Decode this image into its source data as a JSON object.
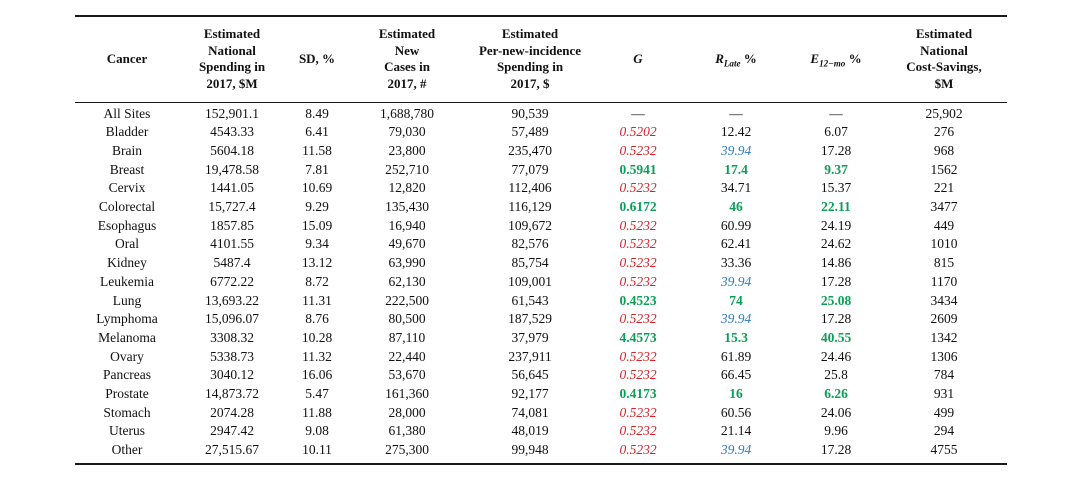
{
  "colors": {
    "flag_red": "#da2128",
    "flag_green": "#0a9f56",
    "flag_blue": "#2c7cc3",
    "rule": "#1a1a1a"
  },
  "table": {
    "headers": {
      "cancer": "Cancer",
      "spending": [
        "Estimated",
        "National",
        "Spending in",
        "2017, $M"
      ],
      "sd": "SD, %",
      "cases": [
        "Estimated",
        "New",
        "Cases in",
        "2017, #"
      ],
      "per_incidence": [
        "Estimated",
        "Per-new-incidence",
        "Spending in",
        "2017, $"
      ],
      "g": "G",
      "r_main": "R",
      "r_sub": "Late",
      "r_pct": "%",
      "e_main": "E",
      "e_sub": "12−mo",
      "e_pct": "%",
      "savings": [
        "Estimated",
        "National",
        "Cost-Savings,",
        "$M"
      ]
    },
    "rows": [
      {
        "cancer": "All Sites",
        "spending": "152,901.1",
        "sd": "8.49",
        "cases": "1,688,780",
        "per_incidence": "90,539",
        "g": "—",
        "g_style": "",
        "r_late": "—",
        "r_style": "",
        "e12": "—",
        "e_style": "",
        "savings": "25,902"
      },
      {
        "cancer": "Bladder",
        "spending": "4543.33",
        "sd": "6.41",
        "cases": "79,030",
        "per_incidence": "57,489",
        "g": "0.5202",
        "g_style": "red",
        "r_late": "12.42",
        "r_style": "",
        "e12": "6.07",
        "e_style": "",
        "savings": "276"
      },
      {
        "cancer": "Brain",
        "spending": "5604.18",
        "sd": "11.58",
        "cases": "23,800",
        "per_incidence": "235,470",
        "g": "0.5232",
        "g_style": "red",
        "r_late": "39.94",
        "r_style": "blue",
        "e12": "17.28",
        "e_style": "",
        "savings": "968"
      },
      {
        "cancer": "Breast",
        "spending": "19,478.58",
        "sd": "7.81",
        "cases": "252,710",
        "per_incidence": "77,079",
        "g": "0.5941",
        "g_style": "green",
        "r_late": "17.4",
        "r_style": "green",
        "e12": "9.37",
        "e_style": "green",
        "savings": "1562"
      },
      {
        "cancer": "Cervix",
        "spending": "1441.05",
        "sd": "10.69",
        "cases": "12,820",
        "per_incidence": "112,406",
        "g": "0.5232",
        "g_style": "red",
        "r_late": "34.71",
        "r_style": "",
        "e12": "15.37",
        "e_style": "",
        "savings": "221"
      },
      {
        "cancer": "Colorectal",
        "spending": "15,727.4",
        "sd": "9.29",
        "cases": "135,430",
        "per_incidence": "116,129",
        "g": "0.6172",
        "g_style": "green",
        "r_late": "46",
        "r_style": "green",
        "e12": "22.11",
        "e_style": "green",
        "savings": "3477"
      },
      {
        "cancer": "Esophagus",
        "spending": "1857.85",
        "sd": "15.09",
        "cases": "16,940",
        "per_incidence": "109,672",
        "g": "0.5232",
        "g_style": "red",
        "r_late": "60.99",
        "r_style": "",
        "e12": "24.19",
        "e_style": "",
        "savings": "449"
      },
      {
        "cancer": "Oral",
        "spending": "4101.55",
        "sd": "9.34",
        "cases": "49,670",
        "per_incidence": "82,576",
        "g": "0.5232",
        "g_style": "red",
        "r_late": "62.41",
        "r_style": "",
        "e12": "24.62",
        "e_style": "",
        "savings": "1010"
      },
      {
        "cancer": "Kidney",
        "spending": "5487.4",
        "sd": "13.12",
        "cases": "63,990",
        "per_incidence": "85,754",
        "g": "0.5232",
        "g_style": "red",
        "r_late": "33.36",
        "r_style": "",
        "e12": "14.86",
        "e_style": "",
        "savings": "815"
      },
      {
        "cancer": "Leukemia",
        "spending": "6772.22",
        "sd": "8.72",
        "cases": "62,130",
        "per_incidence": "109,001",
        "g": "0.5232",
        "g_style": "red",
        "r_late": "39.94",
        "r_style": "blue",
        "e12": "17.28",
        "e_style": "",
        "savings": "1170"
      },
      {
        "cancer": "Lung",
        "spending": "13,693.22",
        "sd": "11.31",
        "cases": "222,500",
        "per_incidence": "61,543",
        "g": "0.4523",
        "g_style": "green",
        "r_late": "74",
        "r_style": "green",
        "e12": "25.08",
        "e_style": "green",
        "savings": "3434"
      },
      {
        "cancer": "Lymphoma",
        "spending": "15,096.07",
        "sd": "8.76",
        "cases": "80,500",
        "per_incidence": "187,529",
        "g": "0.5232",
        "g_style": "red",
        "r_late": "39.94",
        "r_style": "blue",
        "e12": "17.28",
        "e_style": "",
        "savings": "2609"
      },
      {
        "cancer": "Melanoma",
        "spending": "3308.32",
        "sd": "10.28",
        "cases": "87,110",
        "per_incidence": "37,979",
        "g": "4.4573",
        "g_style": "green",
        "r_late": "15.3",
        "r_style": "green",
        "e12": "40.55",
        "e_style": "green",
        "savings": "1342"
      },
      {
        "cancer": "Ovary",
        "spending": "5338.73",
        "sd": "11.32",
        "cases": "22,440",
        "per_incidence": "237,911",
        "g": "0.5232",
        "g_style": "red",
        "r_late": "61.89",
        "r_style": "",
        "e12": "24.46",
        "e_style": "",
        "savings": "1306"
      },
      {
        "cancer": "Pancreas",
        "spending": "3040.12",
        "sd": "16.06",
        "cases": "53,670",
        "per_incidence": "56,645",
        "g": "0.5232",
        "g_style": "red",
        "r_late": "66.45",
        "r_style": "",
        "e12": "25.8",
        "e_style": "",
        "savings": "784"
      },
      {
        "cancer": "Prostate",
        "spending": "14,873.72",
        "sd": "5.47",
        "cases": "161,360",
        "per_incidence": "92,177",
        "g": "0.4173",
        "g_style": "green",
        "r_late": "16",
        "r_style": "green",
        "e12": "6.26",
        "e_style": "green",
        "savings": "931"
      },
      {
        "cancer": "Stomach",
        "spending": "2074.28",
        "sd": "11.88",
        "cases": "28,000",
        "per_incidence": "74,081",
        "g": "0.5232",
        "g_style": "red",
        "r_late": "60.56",
        "r_style": "",
        "e12": "24.06",
        "e_style": "",
        "savings": "499"
      },
      {
        "cancer": "Uterus",
        "spending": "2947.42",
        "sd": "9.08",
        "cases": "61,380",
        "per_incidence": "48,019",
        "g": "0.5232",
        "g_style": "red",
        "r_late": "21.14",
        "r_style": "",
        "e12": "9.96",
        "e_style": "",
        "savings": "294"
      },
      {
        "cancer": "Other",
        "spending": "27,515.67",
        "sd": "10.11",
        "cases": "275,300",
        "per_incidence": "99,948",
        "g": "0.5232",
        "g_style": "red",
        "r_late": "39.94",
        "r_style": "blue",
        "e12": "17.28",
        "e_style": "",
        "savings": "4755"
      }
    ]
  }
}
